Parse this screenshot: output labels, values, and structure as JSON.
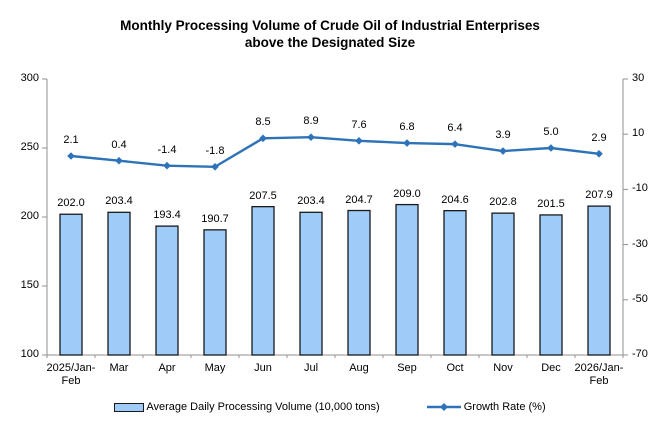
{
  "chart_data": {
    "type": "bar+line",
    "title_lines": [
      "Monthly Processing Volume of Crude Oil of Industrial Enterprises",
      "above the Designated Size"
    ],
    "categories": [
      "2025/Jan-\nFeb",
      "Mar",
      "Apr",
      "May",
      "Jun",
      "Jul",
      "Aug",
      "Sep",
      "Oct",
      "Nov",
      "Dec",
      "2026/Jan-\nFeb"
    ],
    "series": [
      {
        "name": "Average Daily Processing Volume (10,000 tons)",
        "type": "bar",
        "axis": "left",
        "values": [
          202.0,
          203.4,
          193.4,
          190.7,
          207.5,
          203.4,
          204.7,
          209.0,
          204.6,
          202.8,
          201.5,
          207.9
        ],
        "fill": "#9ECBF8",
        "border": "#1a1a1a"
      },
      {
        "name": "Growth Rate (%)",
        "type": "line",
        "axis": "right",
        "values": [
          2.1,
          0.4,
          -1.4,
          -1.8,
          8.5,
          8.9,
          7.6,
          6.8,
          6.4,
          3.9,
          5.0,
          2.9
        ],
        "color": "#2E73B8",
        "marker": "diamond"
      }
    ],
    "axes": {
      "left": {
        "min": 100,
        "max": 300,
        "ticks": [
          300,
          250,
          200,
          150,
          100
        ]
      },
      "right": {
        "min": -70,
        "max": 30,
        "ticks": [
          30,
          10,
          -10,
          -30,
          -50,
          -70
        ]
      }
    },
    "axis_color": "#909090",
    "grid": false,
    "legend_position": "bottom",
    "value_label_decimals": 1
  }
}
